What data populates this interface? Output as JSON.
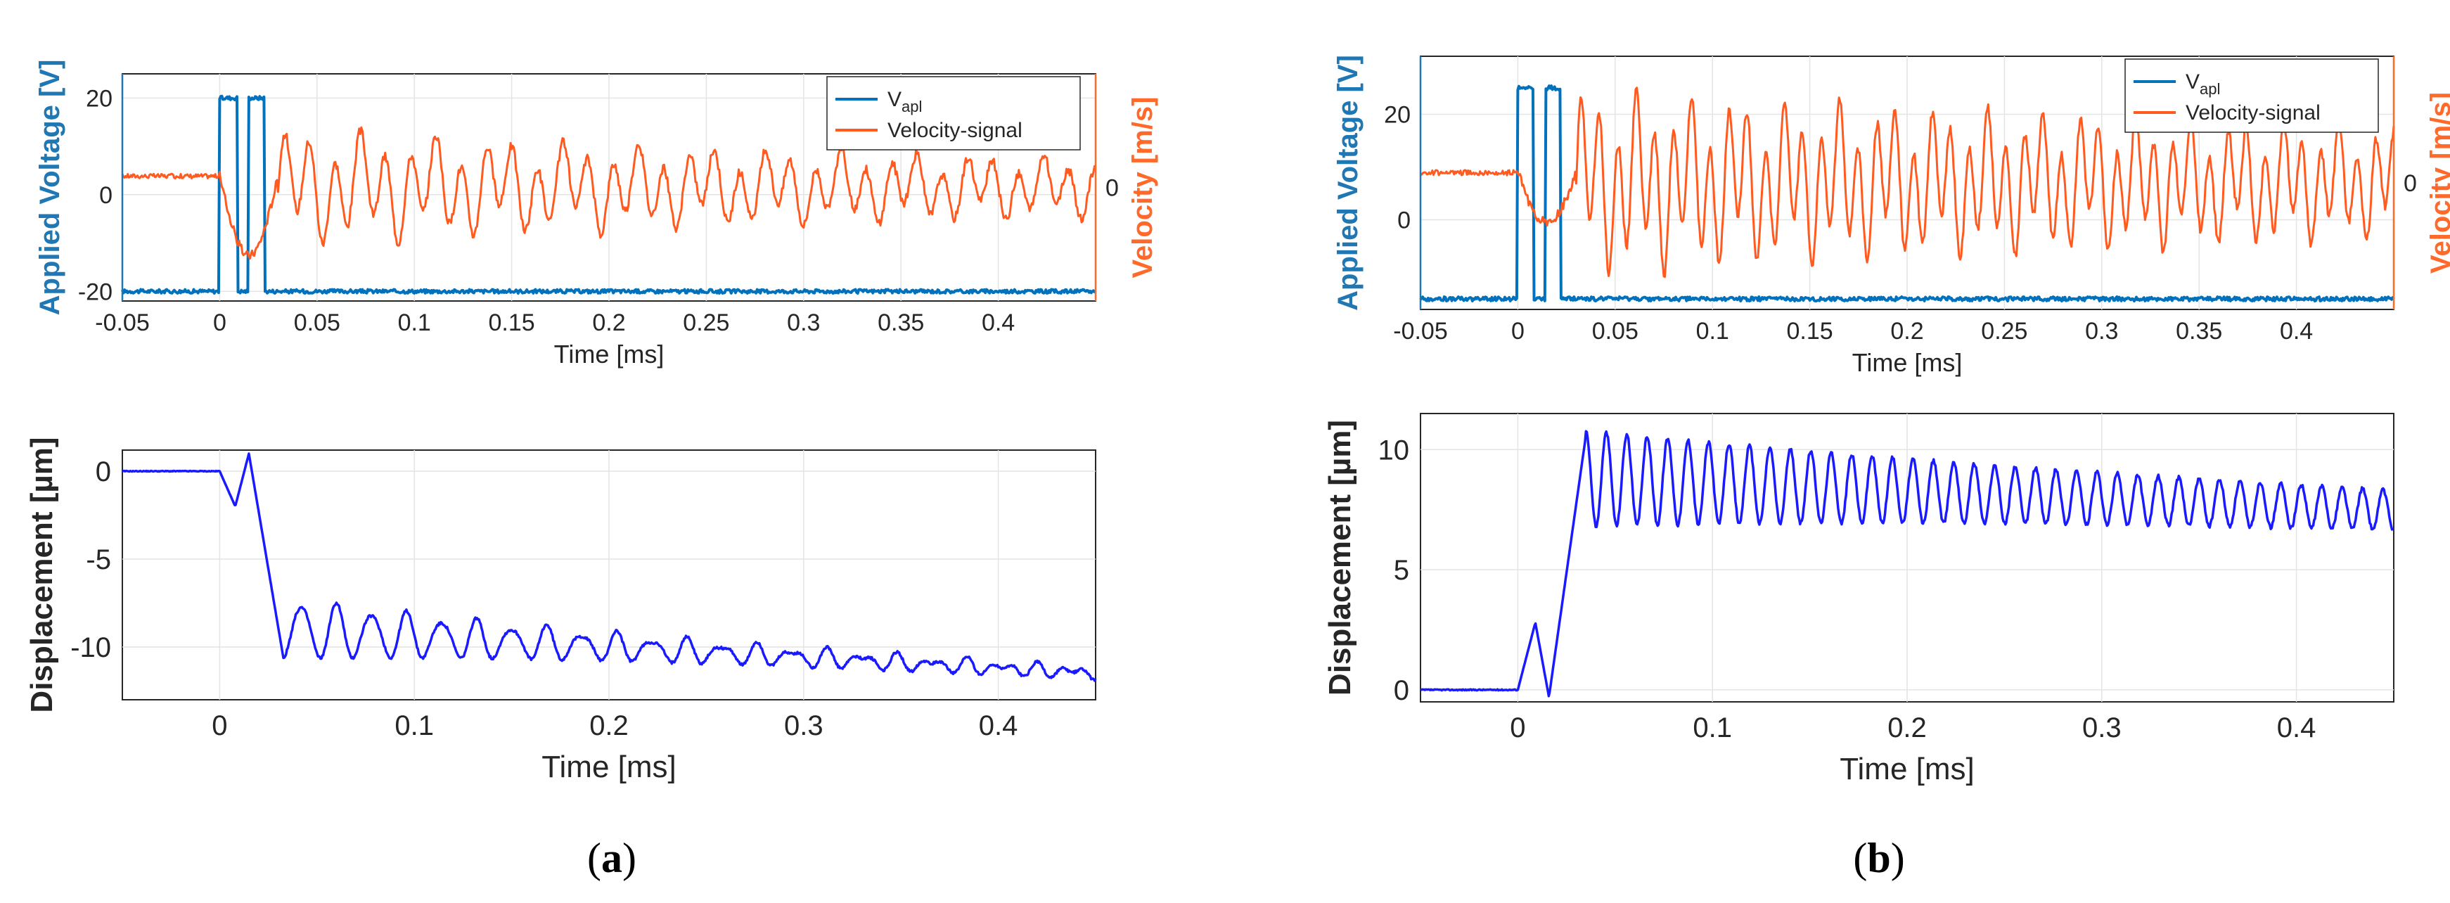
{
  "colors": {
    "vapl": "#0072bd",
    "velocity": "#ff5a1f",
    "displacement": "#1a1aff",
    "right_axis": "#ff6a2b",
    "left_axis": "#1f77b4"
  },
  "panels": [
    {
      "id": "a",
      "label_open": "(",
      "label_letter": "a",
      "label_close": ")"
    },
    {
      "id": "b",
      "label_open": "(",
      "label_letter": "b",
      "label_close": ")"
    }
  ],
  "chart_data": [
    {
      "id": "a_top",
      "type": "line",
      "title": "",
      "xlabel": "Time [ms]",
      "ylabel_left": "Applied Voltage [V]",
      "ylabel_right": "Velocity [m/s]",
      "xlim": [
        -0.05,
        0.45
      ],
      "ylim_left": [
        -22,
        25
      ],
      "ylim_right": [
        -1,
        1
      ],
      "xticks": [
        "-0.05",
        "0",
        "0.05",
        "0.1",
        "0.15",
        "0.2",
        "0.25",
        "0.3",
        "0.35",
        "0.4"
      ],
      "xtick_values": [
        -0.05,
        0,
        0.05,
        0.1,
        0.15,
        0.2,
        0.25,
        0.3,
        0.35,
        0.4
      ],
      "yticks_left": [
        "20",
        "0",
        "-20"
      ],
      "ytick_left_values": [
        20,
        0,
        -20
      ],
      "yticks_right": [
        "0"
      ],
      "ytick_right_values": [
        0
      ],
      "legend": [
        "apl",
        "Velocity-signal"
      ],
      "legend_prefix": "V",
      "legend_position": "top-right",
      "series": [
        {
          "name": "Vapl",
          "axis": "left",
          "description": "two rectangular pulses",
          "baseline": -20,
          "high": 20,
          "pulses": [
            [
              0.0,
              0.009
            ],
            [
              0.015,
              0.023
            ]
          ]
        },
        {
          "name": "Velocity-signal",
          "axis": "right",
          "pre_level": 0.1,
          "dip": -0.7,
          "osc_start": 0.03,
          "peak_amp": 0.35,
          "decay": 2.8,
          "period": 0.013
        }
      ]
    },
    {
      "id": "a_bottom",
      "type": "line",
      "title": "",
      "xlabel": "Time [ms]",
      "ylabel": "Displacement [µm]",
      "xlim": [
        -0.05,
        0.45
      ],
      "ylim": [
        -13,
        1.2
      ],
      "xticks": [
        "0",
        "0.1",
        "0.2",
        "0.3",
        "0.4"
      ],
      "xtick_values": [
        0,
        0.1,
        0.2,
        0.3,
        0.4
      ],
      "yticks": [
        "0",
        "-5",
        "-10"
      ],
      "ytick_values": [
        0,
        -5,
        -10
      ],
      "series": [
        {
          "name": "Displacement",
          "pre_level": 0,
          "dip": -2.0,
          "spike": 1.0,
          "settle_start": -9.0,
          "settle_end": -11.5,
          "osc_amp": 1.8,
          "osc_decay": 5.0,
          "period": 0.018
        }
      ]
    },
    {
      "id": "b_top",
      "type": "line",
      "title": "",
      "xlabel": "Time [ms]",
      "ylabel_left": "Applied Voltage [V]",
      "ylabel_right": "Velocity [m/s]",
      "xlim": [
        -0.05,
        0.45
      ],
      "ylim_left": [
        -17,
        31
      ],
      "ylim_right": [
        -1,
        1
      ],
      "xticks": [
        "-0.05",
        "0",
        "0.05",
        "0.1",
        "0.15",
        "0.2",
        "0.25",
        "0.3",
        "0.35",
        "0.4"
      ],
      "xtick_values": [
        -0.05,
        0,
        0.05,
        0.1,
        0.15,
        0.2,
        0.25,
        0.3,
        0.35,
        0.4
      ],
      "yticks_left": [
        "20",
        "0"
      ],
      "ytick_left_values": [
        20,
        0
      ],
      "yticks_right": [
        "0"
      ],
      "ytick_right_values": [
        0
      ],
      "legend": [
        "apl",
        "Velocity-signal"
      ],
      "legend_prefix": "V",
      "legend_position": "top-right",
      "series": [
        {
          "name": "Vapl",
          "axis": "left",
          "description": "two rectangular pulses",
          "baseline": -15,
          "high": 25,
          "pulses": [
            [
              0.0,
              0.008
            ],
            [
              0.014,
              0.022
            ]
          ]
        },
        {
          "name": "Velocity-signal",
          "axis": "right",
          "pre_level": 0.08,
          "dip": -0.4,
          "osc_start": 0.03,
          "peak_amp": 0.55,
          "decay": 1.6,
          "period": 0.0095
        }
      ]
    },
    {
      "id": "b_bottom",
      "type": "line",
      "title": "",
      "xlabel": "Time [ms]",
      "ylabel": "Displacement [µm]",
      "xlim": [
        -0.05,
        0.45
      ],
      "ylim": [
        -0.5,
        11.5
      ],
      "xticks": [
        "0",
        "0.1",
        "0.2",
        "0.3",
        "0.4"
      ],
      "xtick_values": [
        0,
        0.1,
        0.2,
        0.3,
        0.4
      ],
      "yticks": [
        "10",
        "5",
        "0"
      ],
      "ytick_values": [
        10,
        5,
        0
      ],
      "series": [
        {
          "name": "Displacement",
          "pre_level": 0,
          "spike": 2.8,
          "dip": -0.3,
          "peak": 10.6,
          "settle_start": 8.8,
          "settle_end": 7.5,
          "osc_amp": 1.6,
          "osc_decay": 3.2,
          "period": 0.0105
        }
      ]
    }
  ]
}
